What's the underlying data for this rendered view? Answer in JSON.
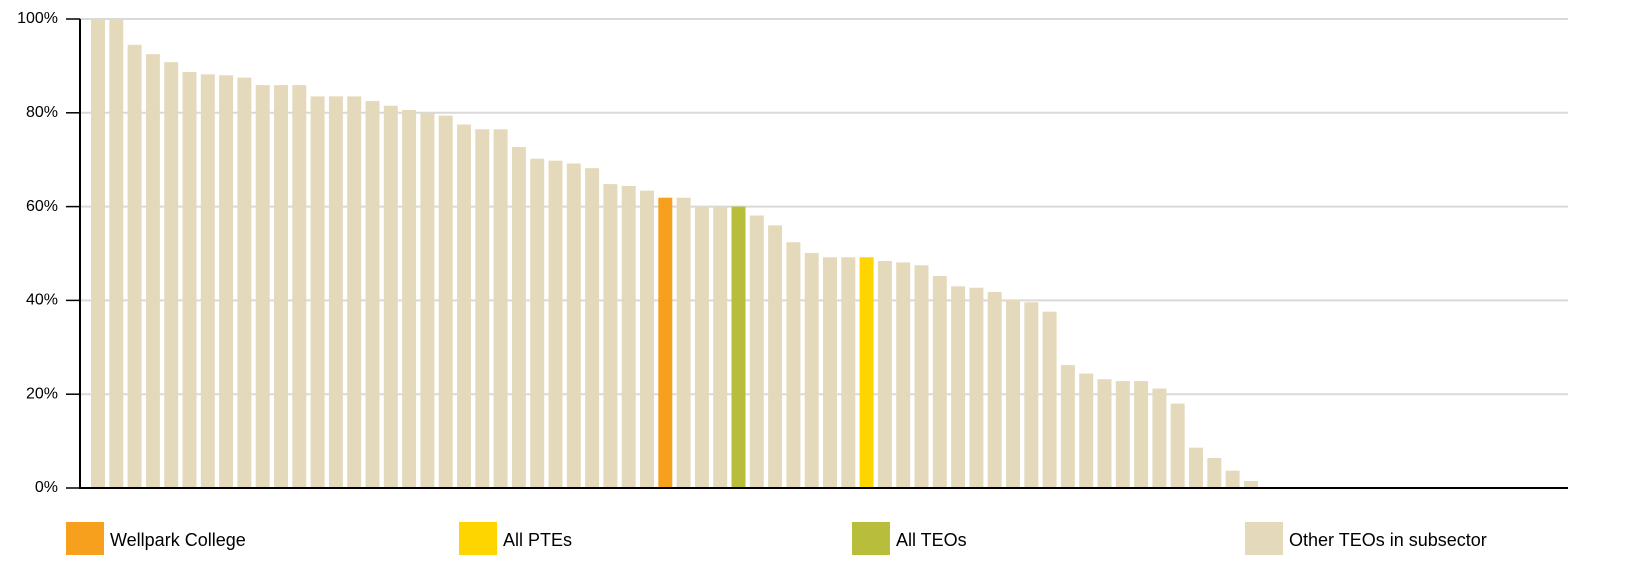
{
  "chart_data": {
    "type": "bar",
    "ylim": [
      0,
      100
    ],
    "yticks": [
      {
        "value": 0,
        "label": "0%"
      },
      {
        "value": 20,
        "label": "20%"
      },
      {
        "value": 40,
        "label": "40%"
      },
      {
        "value": 60,
        "label": "60%"
      },
      {
        "value": 80,
        "label": "80%"
      },
      {
        "value": 100,
        "label": "100%"
      }
    ],
    "grid": true,
    "legend": "bottom",
    "series": [
      {
        "name": "Wellpark College",
        "color": "#f7a01e",
        "values": [
          null,
          null,
          null,
          null,
          null,
          null,
          null,
          null,
          null,
          null,
          null,
          null,
          null,
          null,
          null,
          null,
          null,
          null,
          null,
          null,
          null,
          null,
          null,
          null,
          null,
          null,
          null,
          null,
          null,
          null,
          null,
          61.9,
          null,
          null,
          null,
          null,
          null,
          null,
          null,
          null,
          null,
          null,
          null,
          null,
          null,
          null,
          null,
          null,
          null,
          null,
          null,
          null,
          null,
          null,
          null,
          null,
          null,
          null,
          null,
          null,
          null,
          null,
          null,
          null
        ]
      },
      {
        "name": "All PTEs",
        "color": "#ffd500",
        "values": [
          null,
          null,
          null,
          null,
          null,
          null,
          null,
          null,
          null,
          null,
          null,
          null,
          null,
          null,
          null,
          null,
          null,
          null,
          null,
          null,
          null,
          null,
          null,
          null,
          null,
          null,
          null,
          null,
          null,
          null,
          null,
          null,
          null,
          null,
          null,
          null,
          null,
          null,
          null,
          null,
          null,
          null,
          49.2,
          null,
          null,
          null,
          null,
          null,
          null,
          null,
          null,
          null,
          null,
          null,
          null,
          null,
          null,
          null,
          null,
          null,
          null,
          null,
          null,
          null
        ]
      },
      {
        "name": "All TEOs",
        "color": "#b8bd3c",
        "values": [
          null,
          null,
          null,
          null,
          null,
          null,
          null,
          null,
          null,
          null,
          null,
          null,
          null,
          null,
          null,
          null,
          null,
          null,
          null,
          null,
          null,
          null,
          null,
          null,
          null,
          null,
          null,
          null,
          null,
          null,
          null,
          null,
          null,
          null,
          null,
          60,
          null,
          null,
          null,
          null,
          null,
          null,
          null,
          null,
          null,
          null,
          null,
          null,
          null,
          null,
          null,
          null,
          null,
          null,
          null,
          null,
          null,
          null,
          null,
          null,
          null,
          null,
          null,
          null
        ]
      },
      {
        "name": "Other TEOs in subsector",
        "color": "#e4dabb",
        "values": [
          100,
          100,
          94.5,
          92.5,
          90.8,
          88.7,
          88.2,
          88,
          87.5,
          85.9,
          85.9,
          85.9,
          83.5,
          83.5,
          83.5,
          82.5,
          81.5,
          80.6,
          80,
          79.4,
          77.5,
          76.5,
          76.5,
          72.7,
          70.2,
          69.8,
          69.2,
          68.2,
          64.8,
          64.4,
          63.4,
          null,
          61.9,
          60,
          60,
          null,
          58.1,
          56,
          52.4,
          50.1,
          49.2,
          49.2,
          null,
          48.4,
          48.1,
          47.5,
          45.2,
          43,
          42.7,
          41.8,
          40.1,
          39.6,
          37.6,
          26.2,
          24.4,
          23.2,
          22.8,
          22.8,
          21.2,
          18,
          8.6,
          6.4,
          3.7,
          1.5
        ]
      }
    ]
  }
}
